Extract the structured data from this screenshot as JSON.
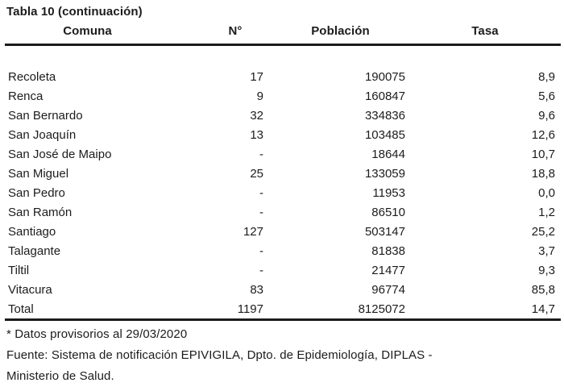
{
  "title": "Tabla 10 (continuación)",
  "table": {
    "columns": {
      "comuna": "Comuna",
      "n": "N°",
      "poblacion": "Población",
      "tasa": "Tasa"
    },
    "rows": [
      [
        "Recoleta",
        "17",
        "190075",
        "8,9"
      ],
      [
        "Renca",
        "9",
        "160847",
        "5,6"
      ],
      [
        "San Bernardo",
        "32",
        "334836",
        "9,6"
      ],
      [
        "San Joaquín",
        "13",
        "103485",
        "12,6"
      ],
      [
        "San José de Maipo",
        "-",
        "18644",
        "10,7"
      ],
      [
        "San Miguel",
        "25",
        "133059",
        "18,8"
      ],
      [
        "San Pedro",
        "-",
        "11953",
        "0,0"
      ],
      [
        "San Ramón",
        "-",
        "86510",
        "1,2"
      ],
      [
        "Santiago",
        "127",
        "503147",
        "25,2"
      ],
      [
        "Talagante",
        "-",
        "81838",
        "3,7"
      ],
      [
        "Tiltil",
        "-",
        "21477",
        "9,3"
      ],
      [
        "Vitacura",
        "83",
        "96774",
        "85,8"
      ]
    ],
    "total_row": [
      "Total",
      "1197",
      "8125072",
      "14,7"
    ]
  },
  "footnotes": [
    "* Datos provisorios al 29/03/2020",
    "Fuente: Sistema de notificación EPIVIGILA, Dpto. de Epidemiología, DIPLAS -",
    "Ministerio de Salud."
  ],
  "colors": {
    "text": "#1c1c1c",
    "rule": "#1b1b1b",
    "background": "#ffffff"
  }
}
